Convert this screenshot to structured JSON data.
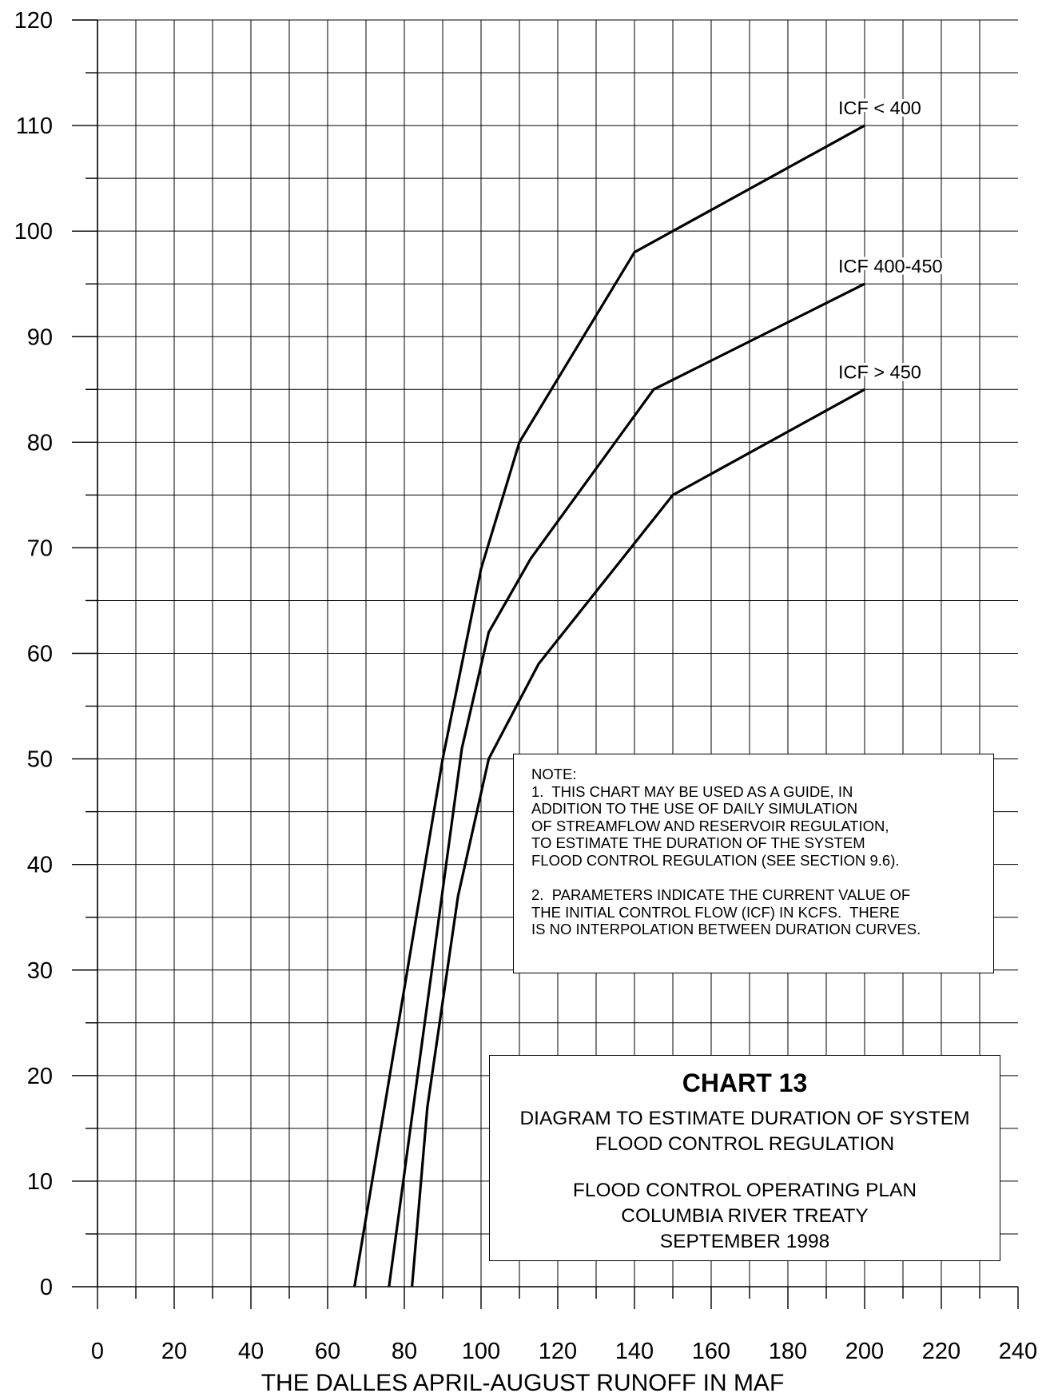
{
  "chart_data": {
    "type": "line",
    "xlabel": "THE DALLES APRIL-AUGUST RUNOFF IN MAF",
    "ylabel": "",
    "xlim": [
      0,
      240
    ],
    "ylim": [
      0,
      120
    ],
    "x_ticks": [
      "0",
      "20",
      "40",
      "60",
      "80",
      "100",
      "120",
      "140",
      "160",
      "180",
      "200",
      "220",
      "240"
    ],
    "y_ticks": [
      "0",
      "10",
      "20",
      "30",
      "40",
      "50",
      "60",
      "70",
      "80",
      "90",
      "100",
      "110",
      "120"
    ],
    "grid": true,
    "series": [
      {
        "name": "ICF < 400",
        "points": [
          [
            67,
            0
          ],
          [
            90,
            50
          ],
          [
            100,
            68
          ],
          [
            110,
            80
          ],
          [
            140,
            98
          ],
          [
            200,
            110
          ]
        ]
      },
      {
        "name": "ICF 400-450",
        "points": [
          [
            76,
            0
          ],
          [
            95,
            51
          ],
          [
            102,
            62
          ],
          [
            113,
            69
          ],
          [
            145,
            85
          ],
          [
            200,
            95
          ]
        ]
      },
      {
        "name": "ICF > 450",
        "points": [
          [
            82,
            0
          ],
          [
            86,
            17
          ],
          [
            94,
            37
          ],
          [
            102,
            50
          ],
          [
            115,
            59
          ],
          [
            150,
            75
          ],
          [
            200,
            85
          ]
        ]
      }
    ]
  },
  "note": {
    "lines": [
      "NOTE:",
      "1.  THIS CHART MAY BE USED AS A GUIDE, IN",
      "ADDITION TO THE USE OF DAILY SIMULATION",
      "OF STREAMFLOW AND RESERVOIR REGULATION,",
      "TO ESTIMATE THE DURATION OF THE SYSTEM",
      "FLOOD CONTROL REGULATION (SEE SECTION 9.6).",
      "2.  PARAMETERS INDICATE THE CURRENT VALUE OF",
      "THE INITIAL CONTROL FLOW (ICF) IN KCFS.  THERE",
      "IS NO INTERPOLATION BETWEEN DURATION CURVES."
    ]
  },
  "title_block": {
    "title": "CHART 13",
    "description": [
      "DIAGRAM TO ESTIMATE DURATION OF SYSTEM",
      "FLOOD CONTROL REGULATION"
    ],
    "plan": [
      "FLOOD CONTROL OPERATING PLAN",
      "COLUMBIA RIVER TREATY",
      "SEPTEMBER 1998"
    ]
  }
}
